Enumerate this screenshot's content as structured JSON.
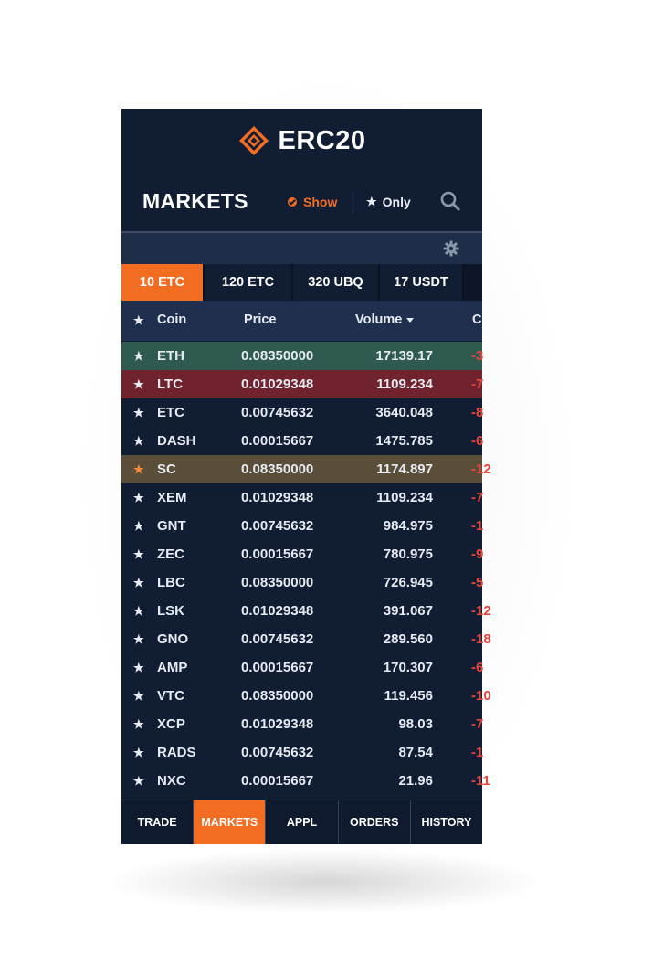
{
  "app": {
    "title": "ERC20",
    "accent_color": "#f26d21",
    "background_color": "#111d33"
  },
  "markets_bar": {
    "title": "MARKETS",
    "show_label": "Show",
    "only_label": "Only",
    "search_icon": "search-icon"
  },
  "settings": {
    "icon": "gear-icon"
  },
  "tabs": [
    {
      "label": "10 ETC",
      "active": true
    },
    {
      "label": "120 ETC",
      "active": false
    },
    {
      "label": "320 UBQ",
      "active": false
    },
    {
      "label": "17 USDT",
      "active": false
    }
  ],
  "table": {
    "headers": {
      "coin": "Coin",
      "price": "Price",
      "volume": "Volume",
      "change": "C"
    },
    "rows": [
      {
        "coin": "ETH",
        "price": "0.08350000",
        "volume": "17139.17",
        "change": "-3",
        "highlight": "green",
        "starred": false
      },
      {
        "coin": "LTC",
        "price": "0.01029348",
        "volume": "1109.234",
        "change": "-7",
        "highlight": "red",
        "starred": false
      },
      {
        "coin": "ETC",
        "price": "0.00745632",
        "volume": "3640.048",
        "change": "-8",
        "highlight": "",
        "starred": false
      },
      {
        "coin": "DASH",
        "price": "0.00015667",
        "volume": "1475.785",
        "change": "-6",
        "highlight": "",
        "starred": false
      },
      {
        "coin": "SC",
        "price": "0.08350000",
        "volume": "1174.897",
        "change": "-12",
        "highlight": "gold",
        "starred": true
      },
      {
        "coin": "XEM",
        "price": "0.01029348",
        "volume": "1109.234",
        "change": "-7",
        "highlight": "",
        "starred": false
      },
      {
        "coin": "GNT",
        "price": "0.00745632",
        "volume": "984.975",
        "change": "-1",
        "highlight": "",
        "starred": false
      },
      {
        "coin": "ZEC",
        "price": "0.00015667",
        "volume": "780.975",
        "change": "-9",
        "highlight": "",
        "starred": false
      },
      {
        "coin": "LBC",
        "price": "0.08350000",
        "volume": "726.945",
        "change": "-5",
        "highlight": "",
        "starred": false
      },
      {
        "coin": "LSK",
        "price": "0.01029348",
        "volume": "391.067",
        "change": "-12",
        "highlight": "",
        "starred": false
      },
      {
        "coin": "GNO",
        "price": "0.00745632",
        "volume": "289.560",
        "change": "-18",
        "highlight": "",
        "starred": false
      },
      {
        "coin": "AMP",
        "price": "0.00015667",
        "volume": "170.307",
        "change": "-6",
        "highlight": "",
        "starred": false
      },
      {
        "coin": "VTC",
        "price": "0.08350000",
        "volume": "119.456",
        "change": "-10",
        "highlight": "",
        "starred": false
      },
      {
        "coin": "XCP",
        "price": "0.01029348",
        "volume": "98.03",
        "change": "-7",
        "highlight": "",
        "starred": false
      },
      {
        "coin": "RADS",
        "price": "0.00745632",
        "volume": "87.54",
        "change": "-1",
        "highlight": "",
        "starred": false
      },
      {
        "coin": "NXC",
        "price": "0.00015667",
        "volume": "21.96",
        "change": "-11",
        "highlight": "",
        "starred": false
      }
    ]
  },
  "bottom_nav": [
    {
      "label": "TRADE",
      "active": false
    },
    {
      "label": "MARKETS",
      "active": true
    },
    {
      "label": "APPL",
      "active": false
    },
    {
      "label": "ORDERS",
      "active": false
    },
    {
      "label": "HISTORY",
      "active": false
    }
  ]
}
